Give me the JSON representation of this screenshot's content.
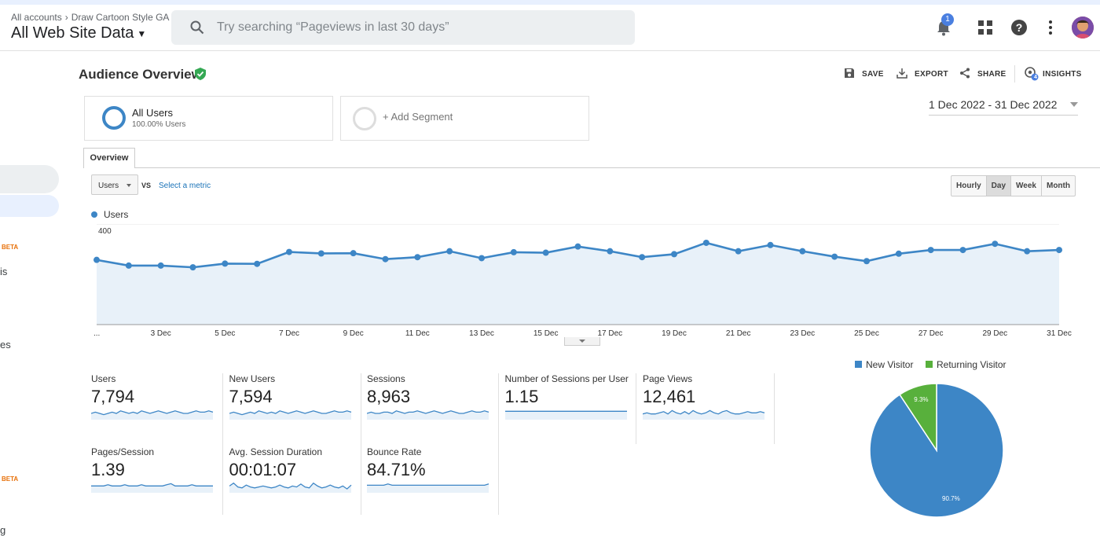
{
  "header": {
    "breadcrumb_root": "All accounts",
    "breadcrumb_account": "Draw Cartoon Style GA",
    "property": "All Web Site Data",
    "search_placeholder": "Try searching “Pageviews in last 30 days”",
    "notification_count": "1"
  },
  "sidebar": {
    "beta1": "BETA",
    "text1": "is",
    "text2": "es",
    "beta2": "BETA",
    "text3": "g"
  },
  "page": {
    "title": "Audience Overview",
    "toolbar": {
      "save": "SAVE",
      "export": "EXPORT",
      "share": "SHARE",
      "insights": "INSIGHTS",
      "insights_count": "4"
    }
  },
  "segments": {
    "active": {
      "name": "All Users",
      "sub": "100.00% Users"
    },
    "add": "+ Add Segment"
  },
  "date_range": "1 Dec 2022 - 31 Dec 2022",
  "tabs": {
    "overview": "Overview"
  },
  "controls": {
    "metric": "Users",
    "vs": "VS",
    "select_metric": "Select a metric",
    "granularity": [
      "Hourly",
      "Day",
      "Week",
      "Month"
    ],
    "selected_granularity": "Day"
  },
  "chart_data": [
    {
      "type": "area",
      "series": [
        {
          "name": "Users",
          "color": "#3d86c6",
          "values": [
            255,
            232,
            232,
            225,
            240,
            239,
            287,
            281,
            282,
            258,
            266,
            290,
            262,
            286,
            284,
            309,
            290,
            266,
            278,
            324,
            290,
            315,
            290,
            268,
            250,
            280,
            295,
            295,
            320,
            290,
            295
          ]
        }
      ],
      "x": [
        "1 Dec",
        "2 Dec",
        "3 Dec",
        "4 Dec",
        "5 Dec",
        "6 Dec",
        "7 Dec",
        "8 Dec",
        "9 Dec",
        "10 Dec",
        "11 Dec",
        "12 Dec",
        "13 Dec",
        "14 Dec",
        "15 Dec",
        "16 Dec",
        "17 Dec",
        "18 Dec",
        "19 Dec",
        "20 Dec",
        "21 Dec",
        "22 Dec",
        "23 Dec",
        "24 Dec",
        "25 Dec",
        "26 Dec",
        "27 Dec",
        "28 Dec",
        "29 Dec",
        "30 Dec",
        "31 Dec"
      ],
      "x_tick_labels": [
        "...",
        "3 Dec",
        "5 Dec",
        "7 Dec",
        "9 Dec",
        "11 Dec",
        "13 Dec",
        "15 Dec",
        "17 Dec",
        "19 Dec",
        "21 Dec",
        "23 Dec",
        "25 Dec",
        "27 Dec",
        "29 Dec",
        "31 Dec"
      ],
      "y_ticks": [
        "400",
        "200"
      ],
      "ylim": [
        0,
        400
      ],
      "grid": true
    },
    {
      "type": "pie",
      "categories": [
        "New Visitor",
        "Returning Visitor"
      ],
      "values": [
        90.7,
        9.3
      ],
      "labels": [
        "90.7%",
        "9.3%"
      ],
      "colors": [
        "#3d86c6",
        "#58b03c"
      ],
      "legend": "top"
    }
  ],
  "metrics": [
    {
      "label": "Users",
      "value": "7,794",
      "spark": [
        5,
        6,
        5,
        4,
        5,
        6,
        5,
        7,
        6,
        5,
        6,
        5,
        7,
        6,
        5,
        6,
        7,
        6,
        5,
        6,
        7,
        6,
        5,
        5,
        6,
        7,
        6,
        6,
        7,
        6
      ]
    },
    {
      "label": "New Users",
      "value": "7,594",
      "spark": [
        5,
        6,
        5,
        4,
        5,
        6,
        5,
        7,
        6,
        5,
        6,
        5,
        7,
        6,
        5,
        6,
        7,
        6,
        5,
        6,
        7,
        6,
        5,
        5,
        6,
        7,
        6,
        6,
        7,
        6
      ]
    },
    {
      "label": "Sessions",
      "value": "8,963",
      "spark": [
        5,
        6,
        5,
        5,
        6,
        6,
        5,
        7,
        6,
        5,
        6,
        6,
        7,
        6,
        5,
        6,
        7,
        6,
        5,
        6,
        7,
        6,
        5,
        5,
        6,
        7,
        6,
        6,
        7,
        6
      ]
    },
    {
      "label": "Number of Sessions per User",
      "value": "1.15",
      "spark": [
        6,
        6,
        6,
        6,
        6,
        6,
        6,
        6,
        6,
        6,
        6,
        6,
        6,
        6,
        6,
        6,
        6,
        6,
        6,
        6,
        6,
        6,
        6,
        6,
        6,
        6,
        6,
        6,
        6,
        6
      ]
    },
    {
      "label": "Page Views",
      "value": "12,461",
      "spark": [
        5,
        6,
        5,
        5,
        6,
        7,
        5,
        8,
        6,
        5,
        7,
        5,
        8,
        6,
        5,
        6,
        8,
        6,
        5,
        7,
        8,
        6,
        5,
        5,
        6,
        7,
        6,
        6,
        7,
        6
      ]
    },
    {
      "label": "Pages/Session",
      "value": "1.39",
      "spark": [
        6,
        6,
        6,
        6,
        7,
        6,
        6,
        6,
        7,
        6,
        6,
        6,
        7,
        6,
        6,
        6,
        6,
        6,
        7,
        8,
        6,
        6,
        6,
        6,
        7,
        6,
        6,
        6,
        6,
        6
      ]
    },
    {
      "label": "Avg. Session Duration",
      "value": "00:01:07",
      "spark": [
        7,
        10,
        6,
        5,
        8,
        6,
        5,
        6,
        7,
        6,
        5,
        6,
        8,
        6,
        5,
        7,
        6,
        9,
        6,
        5,
        10,
        7,
        5,
        6,
        8,
        6,
        5,
        7,
        4,
        8
      ]
    },
    {
      "label": "Bounce Rate",
      "value": "84.71%",
      "spark": [
        6,
        6,
        6,
        6,
        6,
        7,
        6,
        6,
        6,
        6,
        6,
        6,
        6,
        6,
        6,
        6,
        6,
        6,
        6,
        6,
        6,
        6,
        6,
        6,
        6,
        6,
        6,
        6,
        6,
        7
      ]
    }
  ]
}
